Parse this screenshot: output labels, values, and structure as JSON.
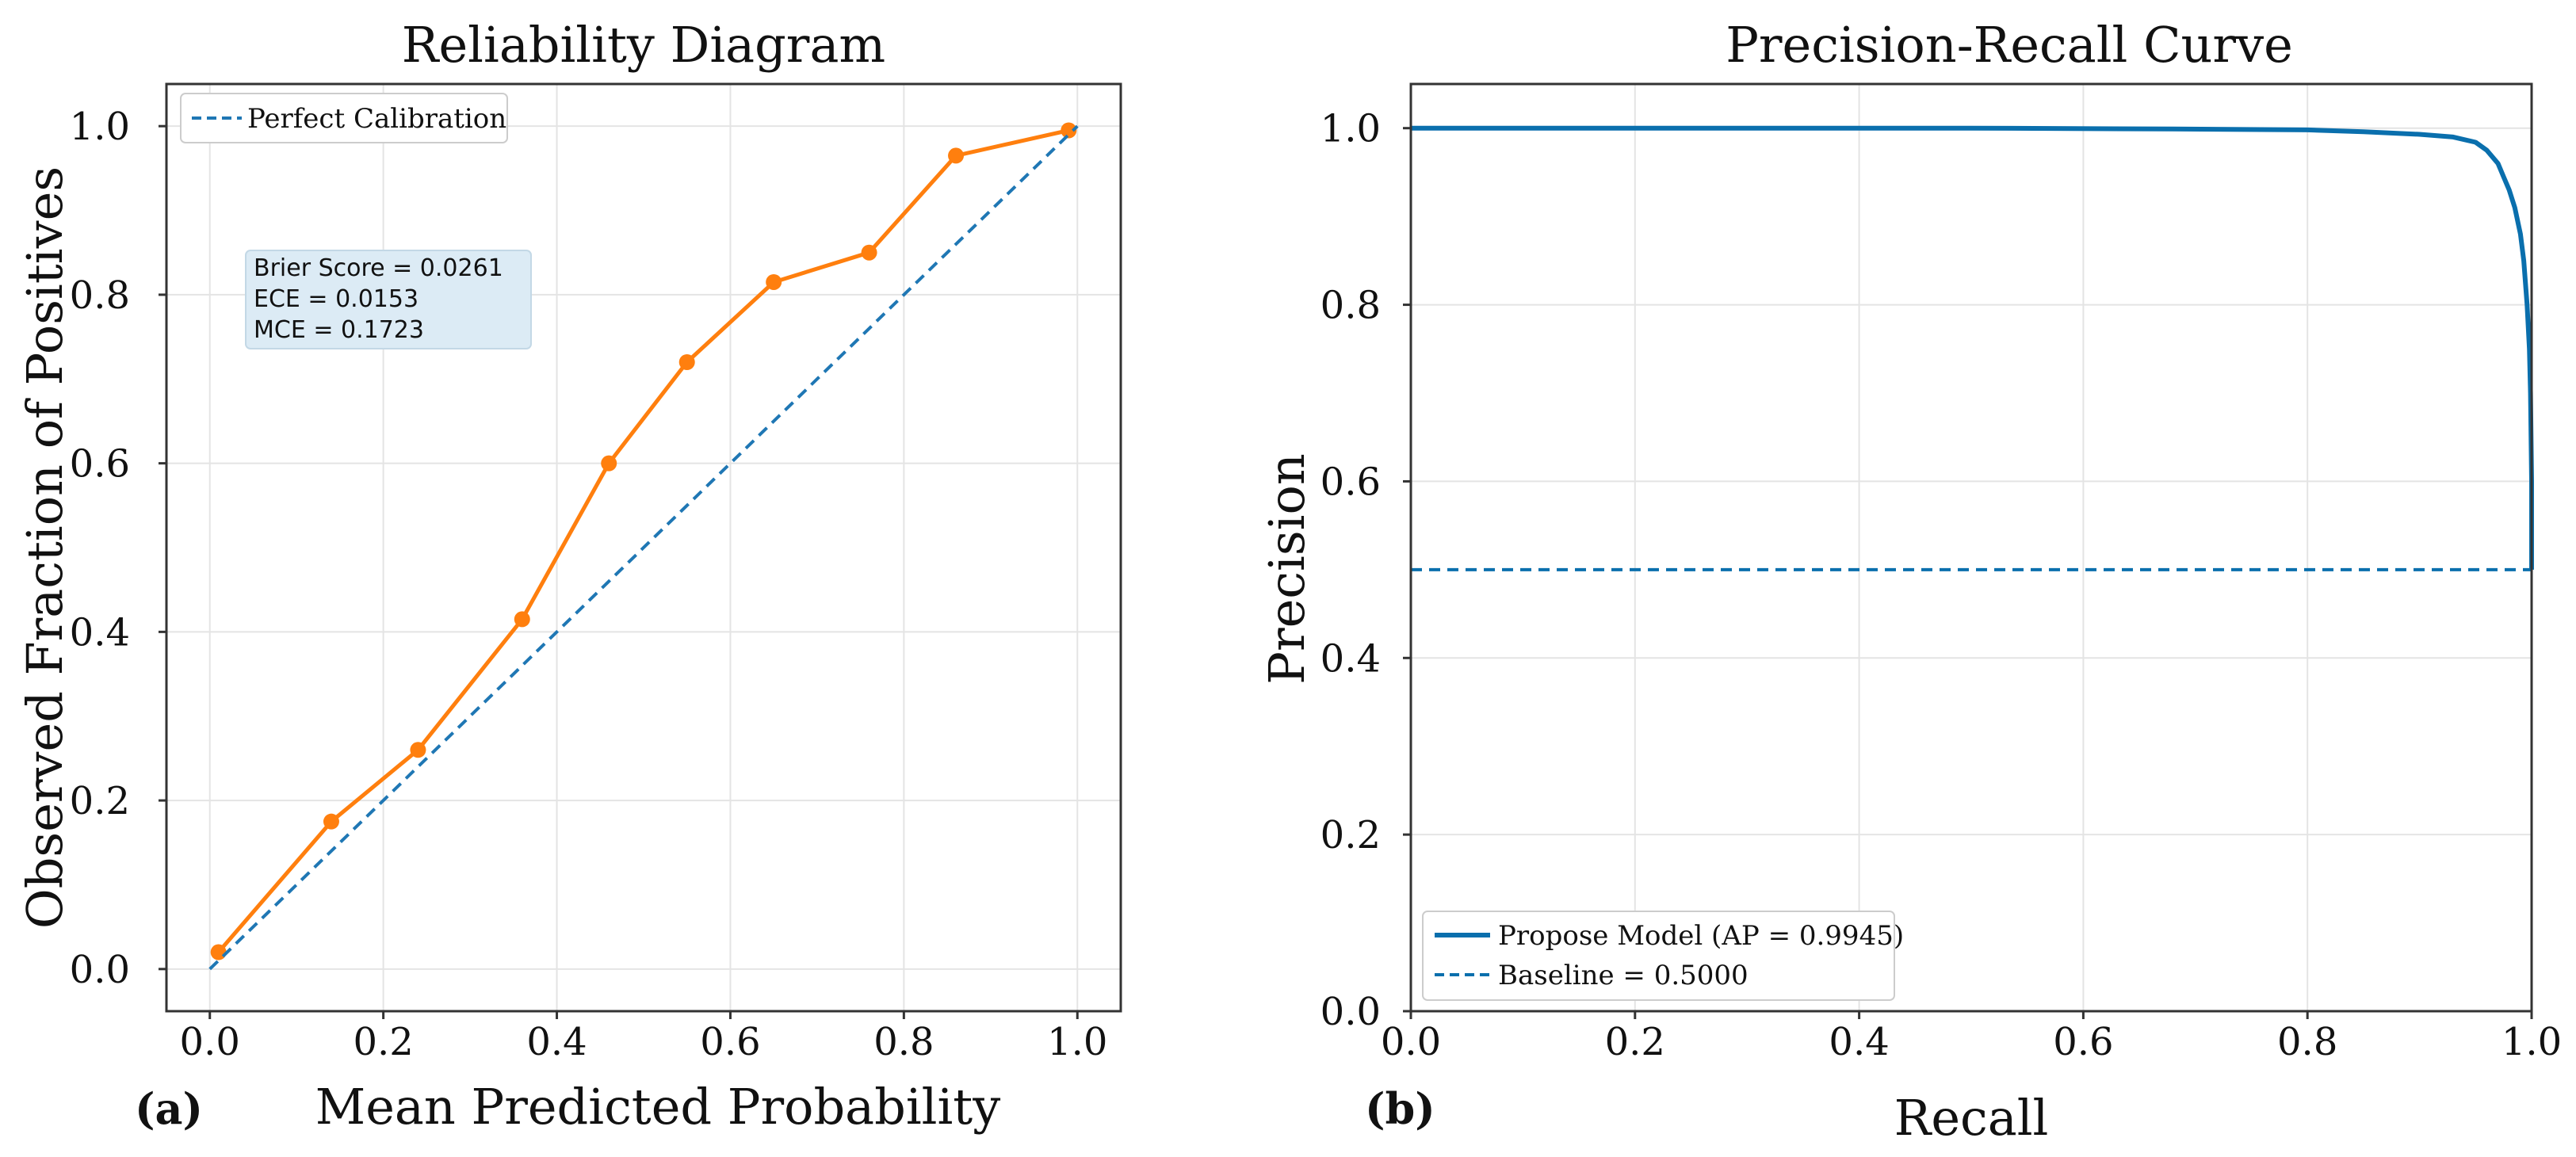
{
  "chart_data": [
    {
      "panel_label": "(a)",
      "type": "line",
      "title": "Reliability Diagram",
      "xlabel": "Mean Predicted Probability",
      "ylabel": "Observed Fraction of Positives",
      "xlim": [
        -0.05,
        1.05
      ],
      "ylim": [
        -0.05,
        1.05
      ],
      "xticks": [
        "0.0",
        "0.2",
        "0.4",
        "0.6",
        "0.8",
        "1.0"
      ],
      "yticks": [
        "0.0",
        "0.2",
        "0.4",
        "0.6",
        "0.8",
        "1.0"
      ],
      "grid": true,
      "legend_position": "top-left",
      "legend": [
        {
          "label": "Perfect Calibration",
          "style": "dashed",
          "color": "#1f77b4"
        }
      ],
      "series": [
        {
          "style": "solid-with-markers",
          "color": "#ff7f0e",
          "x": [
            0.01,
            0.14,
            0.24,
            0.36,
            0.46,
            0.55,
            0.65,
            0.76,
            0.86,
            0.99
          ],
          "y": [
            0.02,
            0.175,
            0.26,
            0.415,
            0.6,
            0.72,
            0.815,
            0.85,
            0.965,
            0.995
          ]
        },
        {
          "name": "Perfect Calibration",
          "style": "dashed",
          "color": "#1f77b4",
          "x": [
            0.0,
            1.0
          ],
          "y": [
            0.0,
            1.0
          ]
        }
      ],
      "annotation": {
        "lines": [
          "Brier Score = 0.0261",
          "ECE = 0.0153",
          "MCE = 0.1723"
        ],
        "background": "#dcebf5"
      }
    },
    {
      "panel_label": "(b)",
      "type": "line",
      "title": "Precision-Recall Curve",
      "xlabel": "Recall",
      "ylabel": "Precision",
      "xlim": [
        0.0,
        1.0
      ],
      "ylim": [
        0.0,
        1.05
      ],
      "xticks": [
        "0.0",
        "0.2",
        "0.4",
        "0.6",
        "0.8",
        "1.0"
      ],
      "yticks": [
        "0.0",
        "0.2",
        "0.4",
        "0.6",
        "0.8",
        "1.0"
      ],
      "grid": true,
      "legend_position": "bottom-left",
      "legend": [
        {
          "label": "Propose Model (AP = 0.9945)",
          "style": "solid",
          "color": "#0a6fad"
        },
        {
          "label": "Baseline = 0.5000",
          "style": "dashed",
          "color": "#0a6fad"
        }
      ],
      "series": [
        {
          "name": "Propose Model (AP = 0.9945)",
          "style": "solid",
          "color": "#0a6fad",
          "x": [
            0.0,
            0.5,
            0.68,
            0.8,
            0.85,
            0.9,
            0.93,
            0.95,
            0.96,
            0.97,
            0.975,
            0.98,
            0.985,
            0.99,
            0.993,
            0.996,
            0.998,
            0.999,
            1.0,
            1.0
          ],
          "y": [
            1.0,
            1.0,
            0.999,
            0.998,
            0.996,
            0.993,
            0.99,
            0.984,
            0.975,
            0.96,
            0.945,
            0.93,
            0.91,
            0.88,
            0.85,
            0.8,
            0.75,
            0.7,
            0.6,
            0.5
          ]
        },
        {
          "name": "Baseline = 0.5000",
          "style": "dashed",
          "color": "#0a6fad",
          "x": [
            0.0,
            1.0
          ],
          "y": [
            0.5,
            0.5
          ]
        }
      ]
    }
  ]
}
